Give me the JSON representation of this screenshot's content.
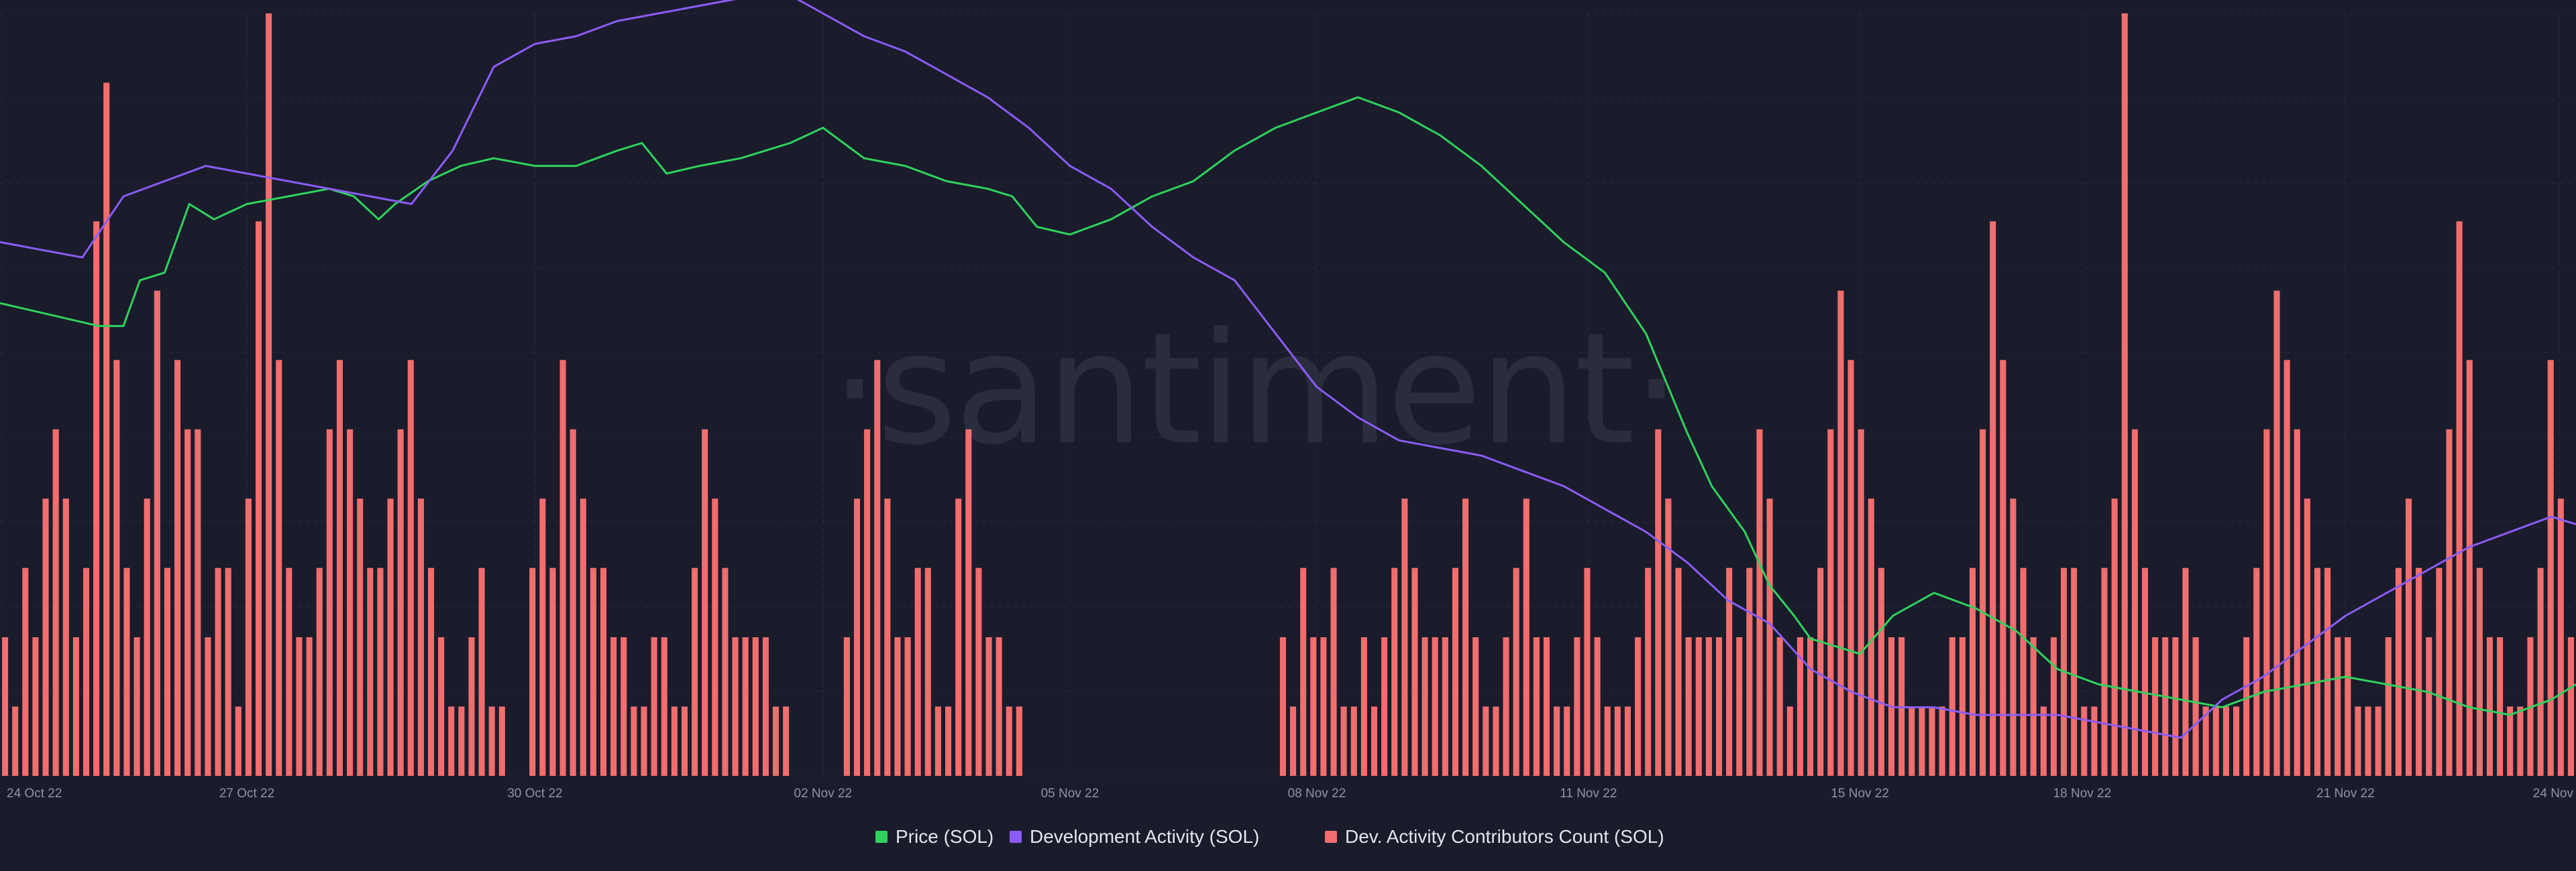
{
  "watermark": "·santiment·",
  "colors": {
    "background": "#1a1c2c",
    "grid": "#2a2d3f",
    "price": "#2fd35c",
    "dev_activity": "#8b5cf6",
    "contributors": "#f26d6d"
  },
  "chart_data": {
    "type": "line",
    "title": "",
    "grid": true,
    "legend_position": "bottom-center",
    "x_ticks": [
      "24 Oct 22",
      "27 Oct 22",
      "30 Oct 22",
      "02 Nov 22",
      "05 Nov 22",
      "08 Nov 22",
      "11 Nov 22",
      "15 Nov 22",
      "18 Nov 22",
      "21 Nov 22",
      "24 Nov"
    ],
    "x_range_days": [
      0,
      31.3
    ],
    "series": [
      {
        "key": "price",
        "name": "Price (SOL)",
        "kind": "line",
        "y_range": [
          0,
          100
        ],
        "points": [
          [
            0,
            62
          ],
          [
            0.4,
            61
          ],
          [
            0.8,
            60
          ],
          [
            1.2,
            59
          ],
          [
            1.5,
            59
          ],
          [
            1.7,
            65
          ],
          [
            2.0,
            66
          ],
          [
            2.3,
            75
          ],
          [
            2.6,
            73
          ],
          [
            3.0,
            75
          ],
          [
            3.5,
            76
          ],
          [
            4.0,
            77
          ],
          [
            4.3,
            76
          ],
          [
            4.6,
            73
          ],
          [
            4.8,
            75
          ],
          [
            5.2,
            78
          ],
          [
            5.6,
            80
          ],
          [
            6.0,
            81
          ],
          [
            6.5,
            80
          ],
          [
            7.0,
            80
          ],
          [
            7.5,
            82
          ],
          [
            7.8,
            83
          ],
          [
            8.1,
            79
          ],
          [
            8.5,
            80
          ],
          [
            9.0,
            81
          ],
          [
            9.6,
            83
          ],
          [
            10.0,
            85
          ],
          [
            10.5,
            81
          ],
          [
            11.0,
            80
          ],
          [
            11.5,
            78
          ],
          [
            12.0,
            77
          ],
          [
            12.3,
            76
          ],
          [
            12.6,
            72
          ],
          [
            13.0,
            71
          ],
          [
            13.5,
            73
          ],
          [
            14.0,
            76
          ],
          [
            14.5,
            78
          ],
          [
            15.0,
            82
          ],
          [
            15.5,
            85
          ],
          [
            16.0,
            87
          ],
          [
            16.5,
            89
          ],
          [
            17.0,
            87
          ],
          [
            17.5,
            84
          ],
          [
            18.0,
            80
          ],
          [
            18.5,
            75
          ],
          [
            19.0,
            70
          ],
          [
            19.5,
            66
          ],
          [
            20.0,
            58
          ],
          [
            20.5,
            45
          ],
          [
            20.8,
            38
          ],
          [
            21.2,
            32
          ],
          [
            21.5,
            25
          ],
          [
            21.8,
            21
          ],
          [
            22.0,
            18
          ],
          [
            22.3,
            17
          ],
          [
            22.6,
            16
          ],
          [
            23.0,
            21
          ],
          [
            23.5,
            24
          ],
          [
            24.0,
            22
          ],
          [
            24.5,
            19
          ],
          [
            25.0,
            14
          ],
          [
            25.5,
            12
          ],
          [
            26.0,
            11
          ],
          [
            26.5,
            10
          ],
          [
            27.0,
            9
          ],
          [
            27.5,
            11
          ],
          [
            28.0,
            12
          ],
          [
            28.5,
            13
          ],
          [
            29.0,
            12
          ],
          [
            29.5,
            11
          ],
          [
            30.0,
            9
          ],
          [
            30.5,
            8
          ],
          [
            31.0,
            10
          ],
          [
            31.3,
            12
          ]
        ]
      },
      {
        "key": "dev_activity",
        "name": "Development Activity (SOL)",
        "kind": "line",
        "y_range": [
          0,
          100
        ],
        "points": [
          [
            0,
            70
          ],
          [
            0.5,
            69
          ],
          [
            1.0,
            68
          ],
          [
            1.5,
            76
          ],
          [
            2.0,
            78
          ],
          [
            2.5,
            80
          ],
          [
            3.0,
            79
          ],
          [
            3.5,
            78
          ],
          [
            4.0,
            77
          ],
          [
            4.5,
            76
          ],
          [
            5.0,
            75
          ],
          [
            5.5,
            82
          ],
          [
            6.0,
            93
          ],
          [
            6.5,
            96
          ],
          [
            7.0,
            97
          ],
          [
            7.5,
            99
          ],
          [
            8.0,
            100
          ],
          [
            8.5,
            101
          ],
          [
            9.0,
            102
          ],
          [
            9.5,
            103
          ],
          [
            10.0,
            100
          ],
          [
            10.5,
            97
          ],
          [
            11.0,
            95
          ],
          [
            11.5,
            92
          ],
          [
            12.0,
            89
          ],
          [
            12.5,
            85
          ],
          [
            13.0,
            80
          ],
          [
            13.5,
            77
          ],
          [
            14.0,
            72
          ],
          [
            14.5,
            68
          ],
          [
            15.0,
            65
          ],
          [
            15.5,
            58
          ],
          [
            16.0,
            51
          ],
          [
            16.5,
            47
          ],
          [
            17.0,
            44
          ],
          [
            17.5,
            43
          ],
          [
            18.0,
            42
          ],
          [
            18.5,
            40
          ],
          [
            19.0,
            38
          ],
          [
            19.5,
            35
          ],
          [
            20.0,
            32
          ],
          [
            20.5,
            28
          ],
          [
            21.0,
            23
          ],
          [
            21.5,
            20
          ],
          [
            22.0,
            14
          ],
          [
            22.5,
            11
          ],
          [
            23.0,
            9
          ],
          [
            23.5,
            9
          ],
          [
            24.0,
            8
          ],
          [
            24.5,
            8
          ],
          [
            25.0,
            8
          ],
          [
            25.5,
            7
          ],
          [
            26.0,
            6
          ],
          [
            26.5,
            5
          ],
          [
            27.0,
            10
          ],
          [
            27.5,
            13
          ],
          [
            28.0,
            17
          ],
          [
            28.5,
            21
          ],
          [
            29.0,
            24
          ],
          [
            29.5,
            27
          ],
          [
            30.0,
            30
          ],
          [
            30.5,
            32
          ],
          [
            31.0,
            34
          ],
          [
            31.3,
            33
          ]
        ]
      },
      {
        "key": "contributors",
        "name": "Dev. Activity Contributors Count (SOL)",
        "kind": "bar",
        "y_range": [
          0,
          11
        ],
        "values": [
          2,
          1,
          3,
          2,
          4,
          5,
          4,
          2,
          3,
          8,
          10,
          6,
          3,
          2,
          4,
          7,
          3,
          6,
          5,
          5,
          2,
          3,
          3,
          1,
          4,
          8,
          11,
          6,
          3,
          2,
          2,
          3,
          5,
          6,
          5,
          4,
          3,
          3,
          4,
          5,
          6,
          4,
          3,
          2,
          1,
          1,
          2,
          3,
          1,
          1,
          0,
          0,
          3,
          4,
          3,
          6,
          5,
          4,
          3,
          3,
          2,
          2,
          1,
          1,
          2,
          2,
          1,
          1,
          3,
          5,
          4,
          3,
          2,
          2,
          2,
          2,
          1,
          1,
          0,
          0,
          0,
          0,
          0,
          2,
          4,
          5,
          6,
          4,
          2,
          2,
          3,
          3,
          1,
          1,
          4,
          5,
          3,
          2,
          2,
          1,
          1,
          0,
          0,
          0,
          0,
          0,
          0,
          0,
          0,
          0,
          0,
          0,
          0,
          0,
          0,
          0,
          0,
          0,
          0,
          0,
          0,
          0,
          0,
          0,
          0,
          0,
          2,
          1,
          3,
          2,
          2,
          3,
          1,
          1,
          2,
          1,
          2,
          3,
          4,
          3,
          2,
          2,
          2,
          3,
          4,
          2,
          1,
          1,
          2,
          3,
          4,
          2,
          2,
          1,
          1,
          2,
          3,
          2,
          1,
          1,
          1,
          2,
          3,
          5,
          4,
          3,
          2,
          2,
          2,
          2,
          3,
          2,
          3,
          5,
          4,
          2,
          1,
          2,
          2,
          3,
          5,
          7,
          6,
          5,
          4,
          3,
          2,
          2,
          1,
          1,
          1,
          1,
          2,
          2,
          3,
          5,
          8,
          6,
          4,
          3,
          2,
          1,
          2,
          3,
          3,
          1,
          1,
          3,
          4,
          11,
          5,
          3,
          2,
          2,
          2,
          3,
          2,
          1,
          1,
          1,
          1,
          2,
          3,
          5,
          7,
          6,
          5,
          4,
          3,
          3,
          2,
          2,
          1,
          1,
          1,
          2,
          3,
          4,
          3,
          2,
          3,
          5,
          8,
          6,
          3,
          2,
          2,
          1,
          1,
          2,
          3,
          6,
          4,
          2
        ]
      }
    ]
  },
  "legend": [
    {
      "key": "price",
      "label": "Price (SOL)"
    },
    {
      "key": "dev_activity",
      "label": "Development Activity (SOL)"
    },
    {
      "key": "contributors",
      "label": "Dev. Activity Contributors Count (SOL)"
    }
  ]
}
